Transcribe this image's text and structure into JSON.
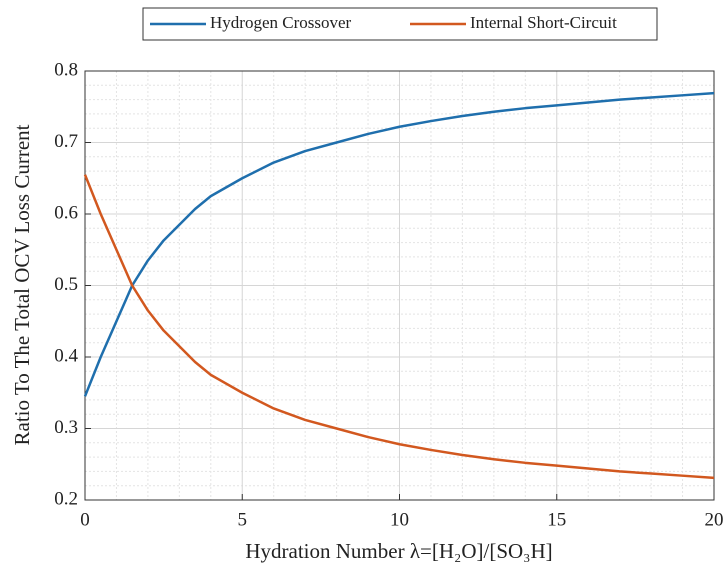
{
  "chart_data": {
    "type": "line",
    "xlabel": "Hydration Number λ=[H₂O]/[SO₃H]",
    "ylabel": "Ratio To The Total OCV Loss Current",
    "x": [
      0,
      0.5,
      1,
      1.5,
      2,
      2.5,
      3,
      3.5,
      4,
      5,
      6,
      7,
      8,
      9,
      10,
      11,
      12,
      13,
      14,
      15,
      16,
      17,
      18,
      19,
      20
    ],
    "series": [
      {
        "name": "Hydrogen Crossover",
        "color": "#1f6fad",
        "values": [
          0.345,
          0.4,
          0.45,
          0.5,
          0.535,
          0.563,
          0.585,
          0.607,
          0.625,
          0.65,
          0.672,
          0.688,
          0.7,
          0.712,
          0.722,
          0.73,
          0.737,
          0.743,
          0.748,
          0.752,
          0.756,
          0.76,
          0.763,
          0.766,
          0.769
        ]
      },
      {
        "name": "Internal Short-Circuit",
        "color": "#d2581f",
        "values": [
          0.655,
          0.6,
          0.55,
          0.5,
          0.465,
          0.437,
          0.415,
          0.393,
          0.375,
          0.35,
          0.328,
          0.312,
          0.3,
          0.288,
          0.278,
          0.27,
          0.263,
          0.257,
          0.252,
          0.248,
          0.244,
          0.24,
          0.237,
          0.234,
          0.231
        ]
      }
    ],
    "xlim": [
      0,
      20
    ],
    "xticks": [
      0,
      5,
      10,
      15,
      20
    ],
    "ylim": [
      0.2,
      0.8
    ],
    "yticks": [
      0.2,
      0.3,
      0.4,
      0.5,
      0.6,
      0.7,
      0.8
    ],
    "grid": true,
    "minor_grid": true,
    "minor_divisions": 5,
    "legend": "top"
  }
}
